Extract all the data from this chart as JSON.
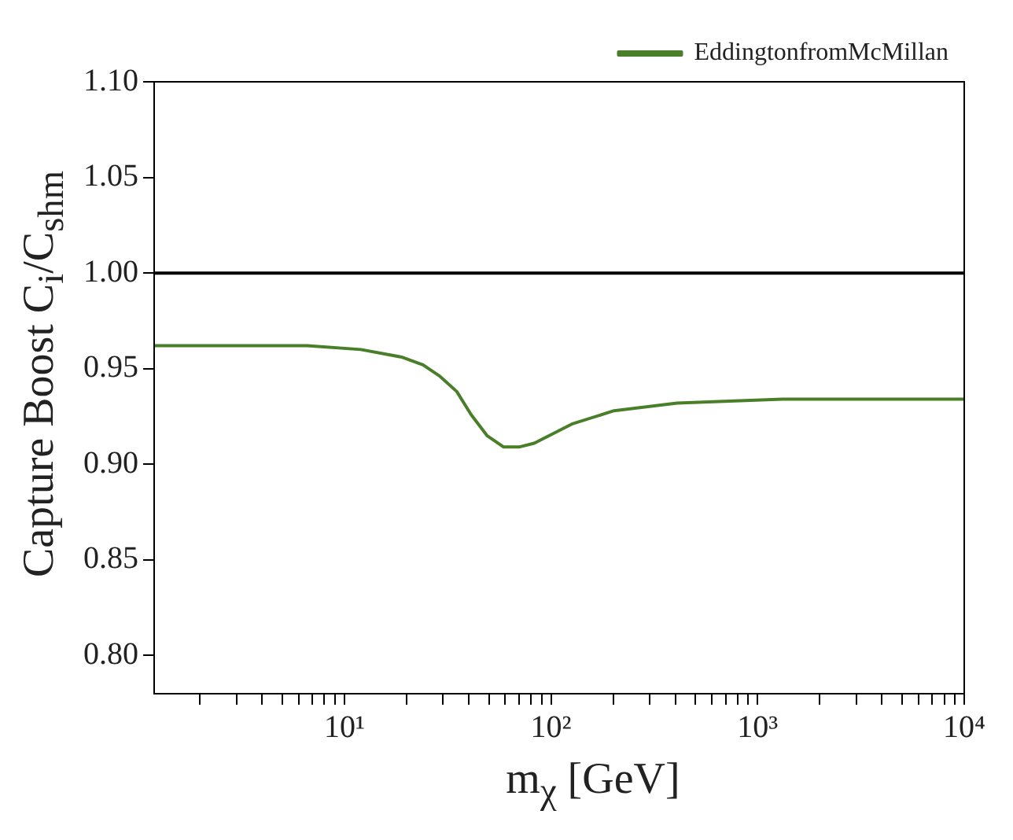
{
  "chart_data": {
    "type": "line",
    "xlabel": "m$_{χ}$ [GeV]",
    "ylabel": "Capture Boost C$_{i}$/C$_{shm}$",
    "log": "x",
    "xlim": [
      1.2,
      10000
    ],
    "ylim": [
      0.78,
      1.1
    ],
    "xticks": [
      {
        "value": 2,
        "label": null
      },
      {
        "value": 3,
        "label": null
      },
      {
        "value": 4,
        "label": null
      },
      {
        "value": 5,
        "label": null
      },
      {
        "value": 6,
        "label": null
      },
      {
        "value": 7,
        "label": null
      },
      {
        "value": 8,
        "label": null
      },
      {
        "value": 9,
        "label": null
      },
      {
        "value": 10,
        "label": "10¹"
      },
      {
        "value": 20,
        "label": null
      },
      {
        "value": 30,
        "label": null
      },
      {
        "value": 40,
        "label": null
      },
      {
        "value": 50,
        "label": null
      },
      {
        "value": 60,
        "label": null
      },
      {
        "value": 70,
        "label": null
      },
      {
        "value": 80,
        "label": null
      },
      {
        "value": 90,
        "label": null
      },
      {
        "value": 100,
        "label": "10²"
      },
      {
        "value": 200,
        "label": null
      },
      {
        "value": 300,
        "label": null
      },
      {
        "value": 400,
        "label": null
      },
      {
        "value": 500,
        "label": null
      },
      {
        "value": 600,
        "label": null
      },
      {
        "value": 700,
        "label": null
      },
      {
        "value": 800,
        "label": null
      },
      {
        "value": 900,
        "label": null
      },
      {
        "value": 1000,
        "label": "10³"
      },
      {
        "value": 2000,
        "label": null
      },
      {
        "value": 3000,
        "label": null
      },
      {
        "value": 4000,
        "label": null
      },
      {
        "value": 5000,
        "label": null
      },
      {
        "value": 6000,
        "label": null
      },
      {
        "value": 7000,
        "label": null
      },
      {
        "value": 8000,
        "label": null
      },
      {
        "value": 9000,
        "label": null
      },
      {
        "value": 10000,
        "label": "10⁴"
      }
    ],
    "yticks": [
      {
        "value": 0.8,
        "label": "0.80"
      },
      {
        "value": 0.85,
        "label": "0.85"
      },
      {
        "value": 0.9,
        "label": "0.90"
      },
      {
        "value": 0.95,
        "label": "0.95"
      },
      {
        "value": 1.0,
        "label": "1.00"
      },
      {
        "value": 1.05,
        "label": "1.05"
      },
      {
        "value": 1.1,
        "label": "1.10"
      }
    ],
    "x": [
      1.2,
      6.6,
      12,
      19,
      24,
      29,
      35,
      41,
      49,
      59,
      70,
      83,
      126,
      202,
      407,
      1318,
      10000
    ],
    "series": [
      {
        "name": "EddingtonfromMcMillan",
        "color": "#4a7f2a",
        "values": [
          0.962,
          0.962,
          0.96,
          0.956,
          0.952,
          0.946,
          0.938,
          0.926,
          0.915,
          0.909,
          0.909,
          0.911,
          0.921,
          0.928,
          0.932,
          0.934,
          0.934
        ]
      }
    ],
    "ref_lines": [
      {
        "axis": "y",
        "value": 1.0,
        "color": "#000000"
      }
    ],
    "legend": "top right",
    "grid": false,
    "marker": "none",
    "line_style": "solid"
  }
}
